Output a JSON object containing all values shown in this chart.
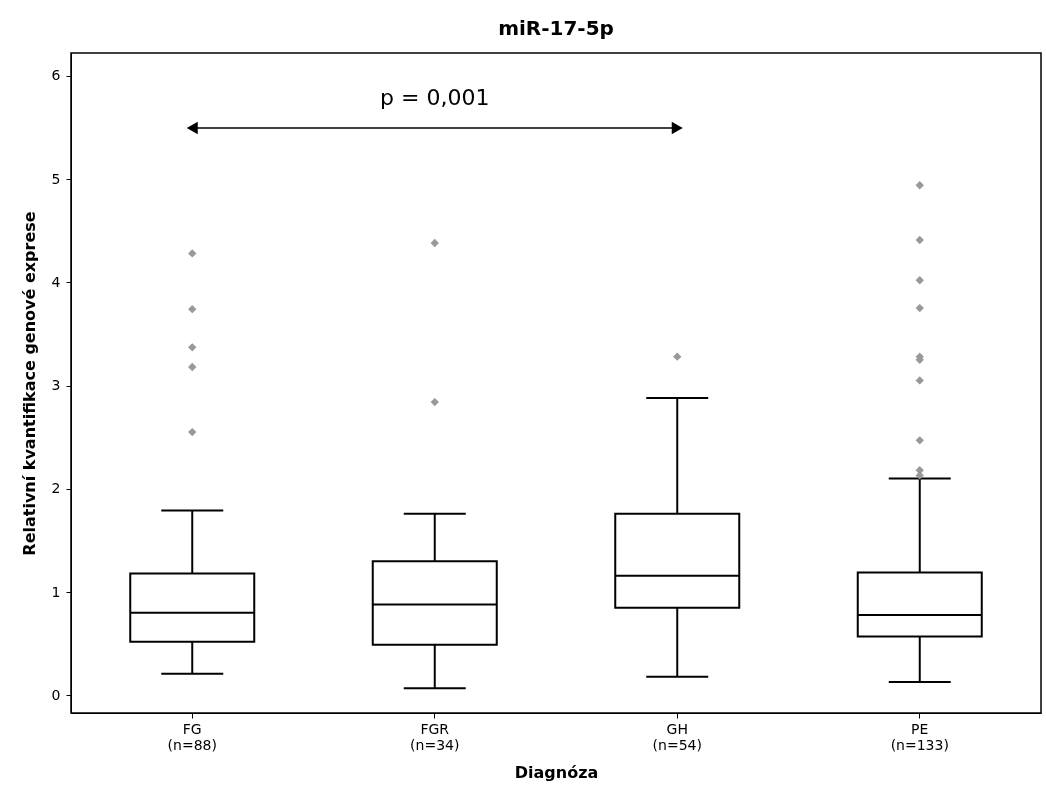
{
  "chart_data": {
    "type": "box",
    "title": "miR-17-5p",
    "xlabel": "Diagnóza",
    "ylabel": "Relativní kvantifikace genové exprese",
    "categories": [
      "FG\n(n=88)",
      "FGR\n(n=34)",
      "GH\n(n=54)",
      "PE\n(n=133)"
    ],
    "boxes": [
      {
        "low": 0.21,
        "q1": 0.52,
        "median": 0.8,
        "q3": 1.18,
        "high": 1.79,
        "outliers": [
          4.28,
          3.74,
          3.37,
          3.18,
          2.55
        ]
      },
      {
        "low": 0.07,
        "q1": 0.49,
        "median": 0.88,
        "q3": 1.3,
        "high": 1.76,
        "outliers": [
          4.38,
          2.84
        ]
      },
      {
        "low": 0.18,
        "q1": 0.85,
        "median": 1.16,
        "q3": 1.76,
        "high": 2.88,
        "outliers": [
          3.28
        ]
      },
      {
        "low": 0.13,
        "q1": 0.57,
        "median": 0.78,
        "q3": 1.19,
        "high": 2.1,
        "outliers": [
          4.94,
          4.41,
          4.02,
          3.75,
          3.28,
          3.25,
          3.05,
          2.47,
          2.18,
          2.13
        ]
      }
    ],
    "ylim": [
      -0.17,
      6.22
    ],
    "yticks": [
      0,
      1,
      2,
      3,
      4,
      5,
      6
    ],
    "grid": false,
    "marker": "diamond",
    "annotations": [
      "p = 0,001"
    ]
  }
}
